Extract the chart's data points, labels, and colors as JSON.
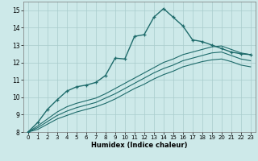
{
  "xlabel": "Humidex (Indice chaleur)",
  "ylabel": "",
  "xlim": [
    -0.5,
    23.5
  ],
  "ylim": [
    8,
    15.5
  ],
  "xticks": [
    0,
    1,
    2,
    3,
    4,
    5,
    6,
    7,
    8,
    9,
    10,
    11,
    12,
    13,
    14,
    15,
    16,
    17,
    18,
    19,
    20,
    21,
    22,
    23
  ],
  "yticks": [
    8,
    9,
    10,
    11,
    12,
    13,
    14,
    15
  ],
  "bg_color": "#cde9e9",
  "line_color": "#1e6b6b",
  "grid_color": "#a8cccc",
  "series1_x": [
    0,
    1,
    2,
    3,
    4,
    5,
    6,
    7,
    8,
    9,
    10,
    11,
    12,
    13,
    14,
    15,
    16,
    17,
    18,
    19,
    20,
    21,
    22,
    23
  ],
  "series1_y": [
    8.0,
    8.55,
    9.3,
    9.85,
    10.35,
    10.6,
    10.7,
    10.85,
    11.25,
    12.25,
    12.2,
    13.5,
    13.6,
    14.6,
    15.1,
    14.6,
    14.1,
    13.3,
    13.2,
    13.0,
    12.8,
    12.6,
    12.5,
    12.45
  ],
  "series2_x": [
    0,
    1,
    2,
    3,
    4,
    5,
    6,
    7,
    8,
    9,
    10,
    11,
    12,
    13,
    14,
    15,
    16,
    17,
    18,
    19,
    20,
    21,
    22,
    23
  ],
  "series2_y": [
    8.0,
    8.35,
    8.75,
    9.15,
    9.45,
    9.65,
    9.8,
    9.95,
    10.2,
    10.5,
    10.8,
    11.1,
    11.4,
    11.7,
    12.0,
    12.2,
    12.45,
    12.6,
    12.75,
    12.9,
    12.95,
    12.75,
    12.55,
    12.45
  ],
  "series3_x": [
    0,
    1,
    2,
    3,
    4,
    5,
    6,
    7,
    8,
    9,
    10,
    11,
    12,
    13,
    14,
    15,
    16,
    17,
    18,
    19,
    20,
    21,
    22,
    23
  ],
  "series3_y": [
    8.0,
    8.25,
    8.6,
    8.95,
    9.2,
    9.4,
    9.55,
    9.7,
    9.95,
    10.2,
    10.5,
    10.8,
    11.1,
    11.4,
    11.65,
    11.85,
    12.1,
    12.25,
    12.4,
    12.55,
    12.6,
    12.4,
    12.2,
    12.1
  ],
  "series4_x": [
    0,
    1,
    2,
    3,
    4,
    5,
    6,
    7,
    8,
    9,
    10,
    11,
    12,
    13,
    14,
    15,
    16,
    17,
    18,
    19,
    20,
    21,
    22,
    23
  ],
  "series4_y": [
    8.0,
    8.15,
    8.45,
    8.75,
    8.95,
    9.15,
    9.3,
    9.45,
    9.65,
    9.9,
    10.2,
    10.5,
    10.75,
    11.05,
    11.3,
    11.5,
    11.75,
    11.9,
    12.05,
    12.15,
    12.2,
    12.05,
    11.85,
    11.75
  ]
}
